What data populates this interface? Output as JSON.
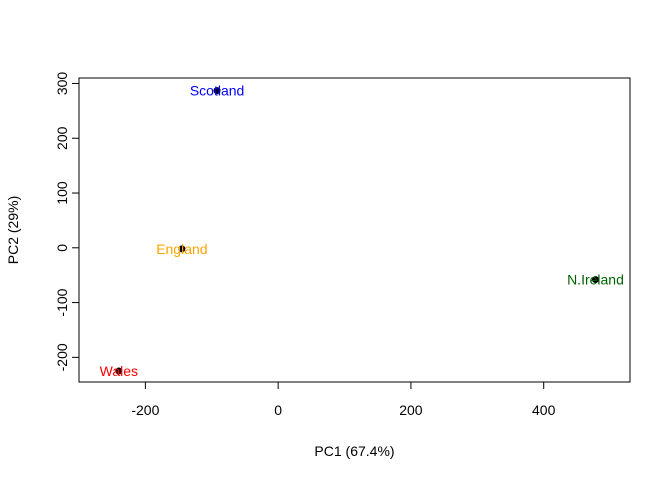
{
  "chart_data": {
    "type": "scatter",
    "title": "",
    "xlabel": "PC1 (67.4%)",
    "ylabel": "PC2 (29%)",
    "xlim": [
      -300,
      530
    ],
    "ylim": [
      -245,
      310
    ],
    "xticks": [
      -200,
      0,
      200,
      400
    ],
    "yticks": [
      -200,
      -100,
      0,
      100,
      200,
      300
    ],
    "grid": false,
    "legend": "none",
    "points": [
      {
        "label": "England",
        "x": -145,
        "y": -2,
        "color": "#FFA500"
      },
      {
        "label": "Wales",
        "x": -240,
        "y": -225,
        "color": "#FF0000"
      },
      {
        "label": "Scotland",
        "x": -92,
        "y": 287,
        "color": "#0000FF"
      },
      {
        "label": "N.Ireland",
        "x": 478,
        "y": -58,
        "color": "#006400"
      }
    ],
    "marker_color": "#000000"
  }
}
